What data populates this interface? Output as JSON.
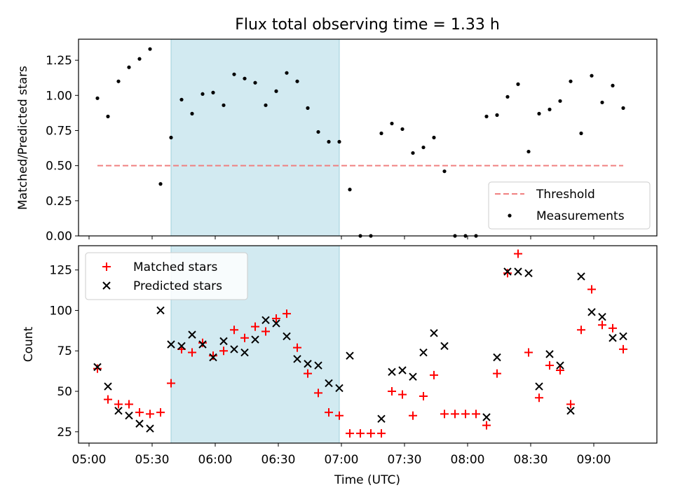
{
  "chart_data": [
    {
      "type": "scatter",
      "title": "Flux total observing time = 1.33 h",
      "xlabel": "",
      "ylabel": "Matched/Predicted stars",
      "xlim": [
        "04:55",
        "09:30"
      ],
      "ylim": [
        0.0,
        1.4
      ],
      "yticks": [
        "0.00",
        "0.25",
        "0.50",
        "0.75",
        "1.00",
        "1.25"
      ],
      "highlight_span": [
        "05:39",
        "06:59"
      ],
      "highlight_color": "#add8e6",
      "threshold": {
        "name": "Threshold",
        "value": 0.5,
        "x_range": [
          "05:04",
          "09:14"
        ],
        "color": "#f08080"
      },
      "legend": {
        "position": "lower right",
        "entries": [
          "Threshold",
          "Measurements"
        ]
      },
      "series": [
        {
          "name": "Measurements",
          "color": "#000000",
          "points": [
            [
              "05:04",
              0.98
            ],
            [
              "05:09",
              0.85
            ],
            [
              "05:14",
              1.1
            ],
            [
              "05:19",
              1.2
            ],
            [
              "05:24",
              1.26
            ],
            [
              "05:29",
              1.33
            ],
            [
              "05:34",
              0.37
            ],
            [
              "05:39",
              0.7
            ],
            [
              "05:44",
              0.97
            ],
            [
              "05:49",
              0.87
            ],
            [
              "05:54",
              1.01
            ],
            [
              "05:59",
              1.02
            ],
            [
              "06:04",
              0.93
            ],
            [
              "06:09",
              1.15
            ],
            [
              "06:14",
              1.12
            ],
            [
              "06:19",
              1.09
            ],
            [
              "06:24",
              0.93
            ],
            [
              "06:29",
              1.03
            ],
            [
              "06:34",
              1.16
            ],
            [
              "06:39",
              1.1
            ],
            [
              "06:44",
              0.91
            ],
            [
              "06:49",
              0.74
            ],
            [
              "06:54",
              0.67
            ],
            [
              "06:59",
              0.67
            ],
            [
              "07:04",
              0.33
            ],
            [
              "07:09",
              0.0
            ],
            [
              "07:14",
              0.0
            ],
            [
              "07:19",
              0.73
            ],
            [
              "07:24",
              0.8
            ],
            [
              "07:29",
              0.76
            ],
            [
              "07:34",
              0.59
            ],
            [
              "07:39",
              0.63
            ],
            [
              "07:44",
              0.7
            ],
            [
              "07:49",
              0.46
            ],
            [
              "07:54",
              0.0
            ],
            [
              "07:59",
              0.0
            ],
            [
              "08:04",
              0.0
            ],
            [
              "08:09",
              0.85
            ],
            [
              "08:14",
              0.86
            ],
            [
              "08:19",
              0.99
            ],
            [
              "08:24",
              1.08
            ],
            [
              "08:29",
              0.6
            ],
            [
              "08:34",
              0.87
            ],
            [
              "08:39",
              0.9
            ],
            [
              "08:44",
              0.96
            ],
            [
              "08:49",
              1.1
            ],
            [
              "08:54",
              0.73
            ],
            [
              "08:59",
              1.14
            ],
            [
              "09:04",
              0.95
            ],
            [
              "09:09",
              1.07
            ],
            [
              "09:14",
              0.91
            ]
          ]
        }
      ]
    },
    {
      "type": "scatter",
      "title": "",
      "xlabel": "Time (UTC)",
      "ylabel": "Count",
      "xlim": [
        "04:55",
        "09:30"
      ],
      "ylim": [
        18,
        140
      ],
      "xticks": [
        "05:00",
        "05:30",
        "06:00",
        "06:30",
        "07:00",
        "07:30",
        "08:00",
        "08:30",
        "09:00"
      ],
      "yticks": [
        "25",
        "50",
        "75",
        "100",
        "125"
      ],
      "highlight_span": [
        "05:39",
        "06:59"
      ],
      "highlight_color": "#add8e6",
      "legend": {
        "position": "upper left",
        "entries": [
          "Matched stars",
          "Predicted stars"
        ]
      },
      "series": [
        {
          "name": "Matched stars",
          "marker": "plus",
          "color": "#ff0000",
          "points": [
            [
              "05:04",
              64
            ],
            [
              "05:09",
              45
            ],
            [
              "05:14",
              42
            ],
            [
              "05:19",
              42
            ],
            [
              "05:24",
              37
            ],
            [
              "05:29",
              36
            ],
            [
              "05:34",
              37
            ],
            [
              "05:39",
              55
            ],
            [
              "05:44",
              76
            ],
            [
              "05:49",
              74
            ],
            [
              "05:54",
              80
            ],
            [
              "05:59",
              72
            ],
            [
              "06:04",
              75
            ],
            [
              "06:09",
              88
            ],
            [
              "06:14",
              83
            ],
            [
              "06:19",
              90
            ],
            [
              "06:24",
              87
            ],
            [
              "06:29",
              95
            ],
            [
              "06:34",
              98
            ],
            [
              "06:39",
              77
            ],
            [
              "06:44",
              61
            ],
            [
              "06:49",
              49
            ],
            [
              "06:54",
              37
            ],
            [
              "06:59",
              35
            ],
            [
              "07:04",
              24
            ],
            [
              "07:09",
              24
            ],
            [
              "07:14",
              24
            ],
            [
              "07:19",
              24
            ],
            [
              "07:24",
              50
            ],
            [
              "07:29",
              48
            ],
            [
              "07:34",
              35
            ],
            [
              "07:39",
              47
            ],
            [
              "07:44",
              60
            ],
            [
              "07:49",
              36
            ],
            [
              "07:54",
              36
            ],
            [
              "07:59",
              36
            ],
            [
              "08:04",
              36
            ],
            [
              "08:09",
              29
            ],
            [
              "08:14",
              61
            ],
            [
              "08:19",
              123
            ],
            [
              "08:24",
              135
            ],
            [
              "08:29",
              74
            ],
            [
              "08:34",
              46
            ],
            [
              "08:39",
              66
            ],
            [
              "08:44",
              63
            ],
            [
              "08:49",
              42
            ],
            [
              "08:54",
              88
            ],
            [
              "08:59",
              113
            ],
            [
              "09:04",
              91
            ],
            [
              "09:09",
              89
            ],
            [
              "09:14",
              76
            ]
          ]
        },
        {
          "name": "Predicted stars",
          "marker": "x",
          "color": "#000000",
          "points": [
            [
              "05:04",
              65
            ],
            [
              "05:09",
              53
            ],
            [
              "05:14",
              38
            ],
            [
              "05:19",
              35
            ],
            [
              "05:24",
              30
            ],
            [
              "05:29",
              27
            ],
            [
              "05:34",
              100
            ],
            [
              "05:39",
              79
            ],
            [
              "05:44",
              78
            ],
            [
              "05:49",
              85
            ],
            [
              "05:54",
              79
            ],
            [
              "05:59",
              71
            ],
            [
              "06:04",
              81
            ],
            [
              "06:09",
              76
            ],
            [
              "06:14",
              74
            ],
            [
              "06:19",
              82
            ],
            [
              "06:24",
              94
            ],
            [
              "06:29",
              92
            ],
            [
              "06:34",
              84
            ],
            [
              "06:39",
              70
            ],
            [
              "06:44",
              67
            ],
            [
              "06:49",
              66
            ],
            [
              "06:54",
              55
            ],
            [
              "06:59",
              52
            ],
            [
              "07:04",
              72
            ],
            [
              "07:19",
              33
            ],
            [
              "07:24",
              62
            ],
            [
              "07:29",
              63
            ],
            [
              "07:34",
              59
            ],
            [
              "07:39",
              74
            ],
            [
              "07:44",
              86
            ],
            [
              "07:49",
              78
            ],
            [
              "08:09",
              34
            ],
            [
              "08:14",
              71
            ],
            [
              "08:19",
              124
            ],
            [
              "08:24",
              124
            ],
            [
              "08:29",
              123
            ],
            [
              "08:34",
              53
            ],
            [
              "08:39",
              73
            ],
            [
              "08:44",
              66
            ],
            [
              "08:49",
              38
            ],
            [
              "08:54",
              121
            ],
            [
              "08:59",
              99
            ],
            [
              "09:04",
              96
            ],
            [
              "09:09",
              83
            ],
            [
              "09:14",
              84
            ]
          ]
        }
      ]
    }
  ]
}
